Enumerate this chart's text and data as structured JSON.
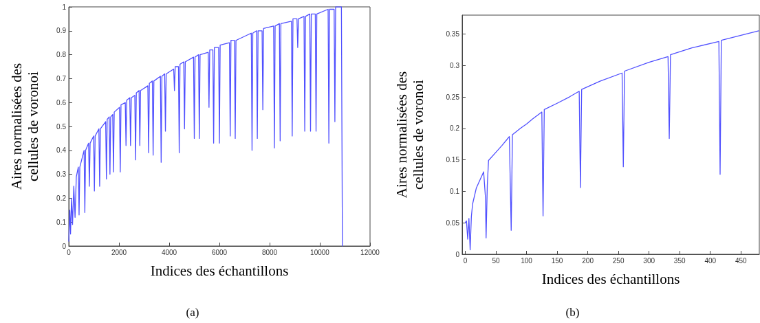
{
  "chart_data": [
    {
      "type": "line",
      "title": "(a)",
      "xlabel": "Indices des échantillons",
      "ylabel": "Aires normalisées des\ncellules de voronoi",
      "color": "#5050ff",
      "grid": false,
      "marker": "none",
      "xlim": [
        0,
        12000
      ],
      "xticks": [
        0,
        2000,
        4000,
        6000,
        8000,
        10000,
        12000
      ],
      "ylim": [
        0,
        1
      ],
      "yticks": [
        0,
        0.1,
        0.2,
        0.3,
        0.4,
        0.5,
        0.6,
        0.7,
        0.8,
        0.9,
        1
      ],
      "x": [
        0,
        40,
        70,
        110,
        150,
        200,
        250,
        300,
        380,
        410,
        440,
        610,
        640,
        670,
        790,
        820,
        850,
        990,
        1020,
        1050,
        1200,
        1230,
        1260,
        1470,
        1500,
        1530,
        1610,
        1640,
        1670,
        1750,
        1780,
        1810,
        2020,
        2050,
        2080,
        2250,
        2280,
        2310,
        2430,
        2460,
        2490,
        2630,
        2660,
        2690,
        2800,
        2830,
        2860,
        3150,
        3180,
        3210,
        3330,
        3360,
        3390,
        3650,
        3680,
        3710,
        3820,
        3850,
        3880,
        4180,
        4210,
        4240,
        4370,
        4400,
        4430,
        4580,
        4610,
        4640,
        4970,
        5000,
        5030,
        5170,
        5200,
        5230,
        5555,
        5585,
        5615,
        5740,
        5770,
        5800,
        5970,
        6000,
        6030,
        6400,
        6430,
        6460,
        6600,
        6630,
        6660,
        7270,
        7300,
        7330,
        7480,
        7510,
        7540,
        7700,
        7730,
        7760,
        8160,
        8190,
        8220,
        8390,
        8420,
        8450,
        8870,
        8900,
        8930,
        9090,
        9120,
        9150,
        9370,
        9400,
        9430,
        9600,
        9630,
        9660,
        9820,
        9850,
        9880,
        10330,
        10360,
        10390,
        10570,
        10600,
        10630,
        10860,
        10900
      ],
      "values": [
        0.02,
        0.15,
        0.05,
        0.2,
        0.09,
        0.25,
        0.12,
        0.29,
        0.33,
        0.13,
        0.33,
        0.4,
        0.14,
        0.4,
        0.43,
        0.25,
        0.43,
        0.46,
        0.23,
        0.46,
        0.49,
        0.25,
        0.49,
        0.52,
        0.28,
        0.53,
        0.54,
        0.3,
        0.54,
        0.55,
        0.31,
        0.56,
        0.58,
        0.31,
        0.59,
        0.6,
        0.42,
        0.61,
        0.62,
        0.42,
        0.62,
        0.63,
        0.36,
        0.64,
        0.65,
        0.42,
        0.65,
        0.67,
        0.39,
        0.68,
        0.69,
        0.38,
        0.69,
        0.71,
        0.35,
        0.71,
        0.72,
        0.48,
        0.72,
        0.74,
        0.65,
        0.75,
        0.75,
        0.39,
        0.76,
        0.77,
        0.49,
        0.77,
        0.79,
        0.45,
        0.79,
        0.8,
        0.45,
        0.8,
        0.81,
        0.58,
        0.82,
        0.82,
        0.43,
        0.83,
        0.83,
        0.43,
        0.84,
        0.85,
        0.46,
        0.86,
        0.86,
        0.45,
        0.86,
        0.89,
        0.4,
        0.89,
        0.9,
        0.45,
        0.9,
        0.9,
        0.57,
        0.91,
        0.92,
        0.41,
        0.92,
        0.93,
        0.44,
        0.93,
        0.94,
        0.46,
        0.95,
        0.95,
        0.83,
        0.95,
        0.96,
        0.48,
        0.96,
        0.97,
        0.48,
        0.97,
        0.97,
        0.48,
        0.97,
        0.99,
        0.43,
        0.99,
        0.99,
        0.52,
        1.0,
        1.0,
        0
      ]
    },
    {
      "type": "line",
      "title": "(b)",
      "xlabel": "Indices des échantillons",
      "ylabel": "Aires normalisées des\ncellules de voronoi",
      "color": "#5050ff",
      "grid": false,
      "marker": "none",
      "xlim": [
        -5,
        480
      ],
      "xticks": [
        0,
        50,
        100,
        150,
        200,
        250,
        300,
        350,
        400,
        450
      ],
      "ylim": [
        0,
        0.38
      ],
      "yticks": [
        0,
        0.05,
        0.1,
        0.15,
        0.2,
        0.25,
        0.3,
        0.35
      ],
      "x": [
        0,
        2,
        4,
        6,
        8,
        10,
        12,
        18,
        30,
        33,
        34,
        36,
        38,
        50,
        60,
        72,
        75,
        77,
        90,
        100,
        110,
        125,
        127,
        129,
        150,
        170,
        186,
        188,
        190,
        220,
        256,
        258,
        260,
        300,
        331,
        333,
        335,
        370,
        414,
        416,
        418,
        450,
        479
      ],
      "values": [
        0.05,
        0.053,
        0.024,
        0.057,
        0.007,
        0.06,
        0.08,
        0.105,
        0.131,
        0.09,
        0.026,
        0.11,
        0.149,
        0.162,
        0.173,
        0.187,
        0.038,
        0.19,
        0.2,
        0.207,
        0.215,
        0.226,
        0.061,
        0.23,
        0.24,
        0.25,
        0.259,
        0.106,
        0.262,
        0.275,
        0.288,
        0.139,
        0.291,
        0.305,
        0.314,
        0.184,
        0.317,
        0.328,
        0.338,
        0.127,
        0.34,
        0.348,
        0.355
      ]
    }
  ]
}
